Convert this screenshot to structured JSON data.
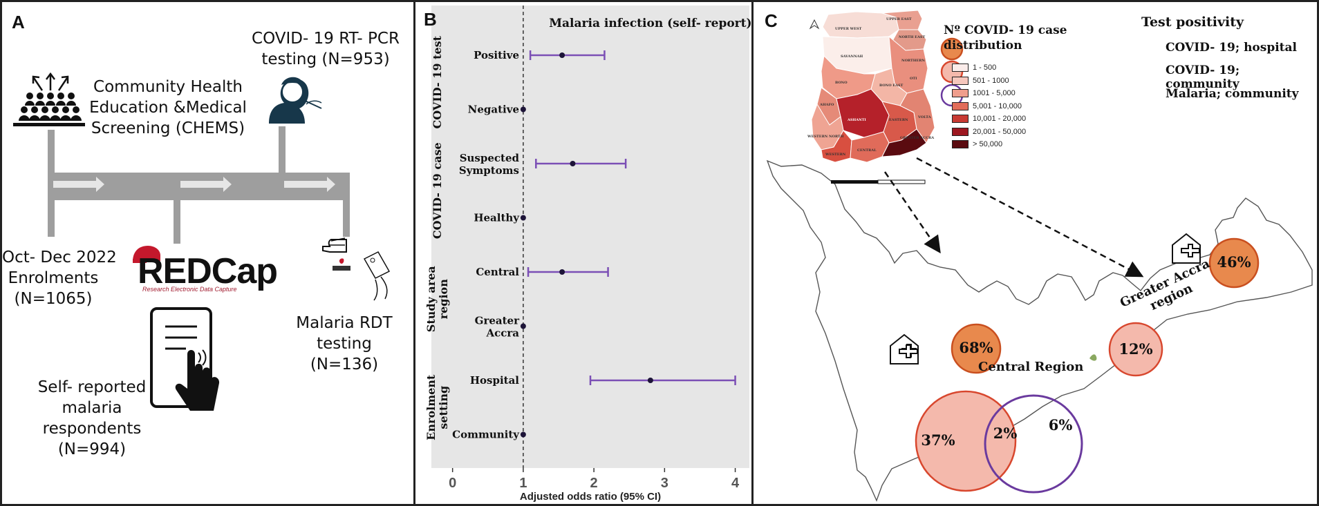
{
  "panel_a": {
    "label": "A",
    "chems": [
      "Community Health",
      "Education &Medical",
      "Screening (CHEMS)"
    ],
    "pcr": [
      "COVID- 19 RT- PCR",
      "testing (N=953)"
    ],
    "enrol": [
      "Oct- Dec 2022",
      "Enrolments",
      "(N=1065)"
    ],
    "redcap": "REDCap",
    "redcap_sub": "Research Electronic Data Capture",
    "self_report": [
      "Self- reported",
      "malaria",
      "respondents",
      "(N=994)"
    ],
    "rdt": [
      "Malaria RDT",
      "testing",
      "(N=136)"
    ]
  },
  "panel_b": {
    "label": "B",
    "chart_data": {
      "type": "forest",
      "title": "Malaria infection (self- report)",
      "xlabel": "Adjusted odds ratio (95% CI)",
      "xlim": [
        -0.3,
        4.2
      ],
      "xticks": [
        0,
        1,
        2,
        3,
        4
      ],
      "reference_line": 1,
      "groups": [
        {
          "name": "COVID- 19 test",
          "items": [
            {
              "label": [
                "Positive"
              ],
              "or": 1.55,
              "lo": 1.1,
              "hi": 2.15
            },
            {
              "label": [
                "Negative"
              ],
              "or": 1.0,
              "lo": 1.0,
              "hi": 1.0
            }
          ]
        },
        {
          "name": "COVID- 19 case",
          "items": [
            {
              "label": [
                "Suspected",
                "Symptoms"
              ],
              "or": 1.7,
              "lo": 1.18,
              "hi": 2.45
            },
            {
              "label": [
                "Healthy"
              ],
              "or": 1.0,
              "lo": 1.0,
              "hi": 1.0
            }
          ]
        },
        {
          "name": "Study area region",
          "items": [
            {
              "label": [
                "Central"
              ],
              "or": 1.55,
              "lo": 1.07,
              "hi": 2.2
            },
            {
              "label": [
                "Greater",
                "Accra"
              ],
              "or": 1.0,
              "lo": 1.0,
              "hi": 1.0
            }
          ]
        },
        {
          "name": "Enrolment setting",
          "items": [
            {
              "label": [
                "Hospital"
              ],
              "or": 2.8,
              "lo": 1.95,
              "hi": 4.0
            },
            {
              "label": [
                "Community"
              ],
              "or": 1.0,
              "lo": 1.0,
              "hi": 1.0
            }
          ]
        }
      ]
    }
  },
  "panel_c": {
    "label": "C",
    "map_title": [
      "Nº COVID- 19 case",
      "distribution"
    ],
    "map_legend": [
      {
        "label": "1 - 500",
        "color": "#fbecea"
      },
      {
        "label": "501 - 1000",
        "color": "#f6c7bd"
      },
      {
        "label": "1001 - 5,000",
        "color": "#ef9e8c"
      },
      {
        "label": "5,001 - 10,000",
        "color": "#e26c5a"
      },
      {
        "label": "10,001 - 20,000",
        "color": "#c83a33"
      },
      {
        "label": "20,001 - 50,000",
        "color": "#9d1720"
      },
      {
        "label": "> 50,000",
        "color": "#5a0b10"
      }
    ],
    "legend_title": "Test positivity",
    "legend": [
      {
        "label": "COVID- 19; hospital",
        "color": "#e8894d"
      },
      {
        "label": "COVID- 19; community",
        "color": "#f4b9ac"
      },
      {
        "label": "Malaria; community",
        "color": "#6a3a9e"
      }
    ],
    "central_region": "Central Region",
    "accra_region": [
      "Greater Accra",
      "region"
    ],
    "central_hospital": "68%",
    "accra_hospital": "46%",
    "accra_community": "12%",
    "central_covid_only": "37%",
    "central_overlap": "2%",
    "central_malaria": "6%",
    "map_regions": [
      "UPPER WEST",
      "UPPER EAST",
      "NORTH EAST",
      "NORTHERN",
      "SAVANNAH",
      "OTI",
      "BONO EAST",
      "BONO",
      "AHAFO",
      "ASHANTI",
      "EASTERN",
      "VOLTA",
      "WESTERN NORTH",
      "WESTERN",
      "CENTRAL",
      "GREATER ACCRA"
    ]
  }
}
